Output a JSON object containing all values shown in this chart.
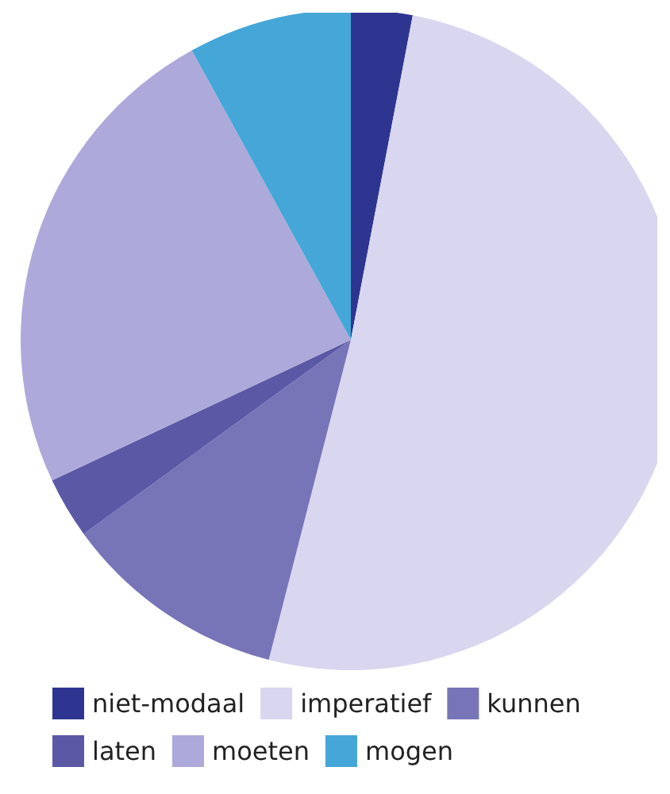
{
  "chart_data": {
    "type": "pie",
    "categories": [
      "niet-modaal",
      "imperatief",
      "kunnen",
      "laten",
      "moeten",
      "mogen"
    ],
    "values": [
      3,
      51,
      11,
      3,
      24,
      8
    ],
    "colors": [
      "#2e3591",
      "#d9d6ef",
      "#7874b8",
      "#5b59a6",
      "#ada9da",
      "#45a6d8"
    ],
    "legend": "bottom"
  }
}
